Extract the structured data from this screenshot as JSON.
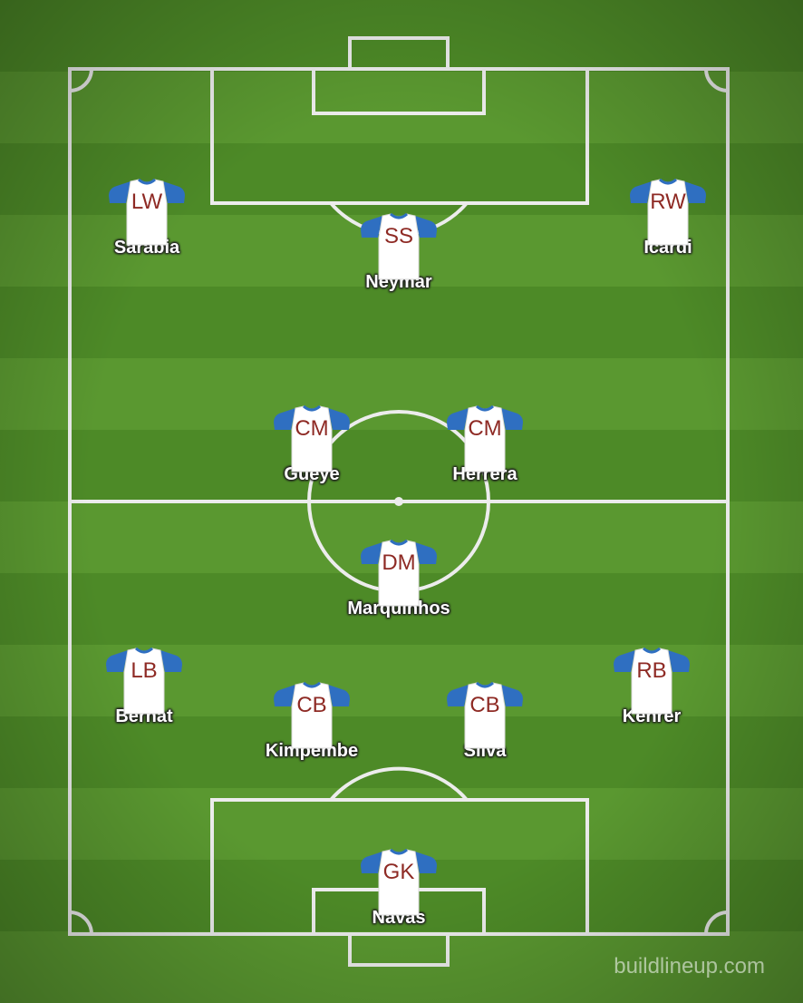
{
  "colors": {
    "shirt_body": "#ffffff",
    "shirt_sleeves": "#2f6fc1",
    "position_text": "#8e2a24",
    "player_name_text": "#ffffff",
    "pitch_line": "#ececec"
  },
  "players": [
    {
      "key": "lw",
      "position": "LW",
      "name": "Sarabia"
    },
    {
      "key": "ss",
      "position": "SS",
      "name": "Neymar"
    },
    {
      "key": "rw",
      "position": "RW",
      "name": "Icardi"
    },
    {
      "key": "cm-left",
      "position": "CM",
      "name": "Gueye"
    },
    {
      "key": "cm-right",
      "position": "CM",
      "name": "Herrera"
    },
    {
      "key": "dm",
      "position": "DM",
      "name": "Marquinhos"
    },
    {
      "key": "lb",
      "position": "LB",
      "name": "Bernat"
    },
    {
      "key": "cb-left",
      "position": "CB",
      "name": "Kimpembe"
    },
    {
      "key": "cb-right",
      "position": "CB",
      "name": "Silva"
    },
    {
      "key": "rb",
      "position": "RB",
      "name": "Kehrer"
    },
    {
      "key": "gk",
      "position": "GK",
      "name": "Navas"
    }
  ],
  "watermark": "buildlineup.com"
}
